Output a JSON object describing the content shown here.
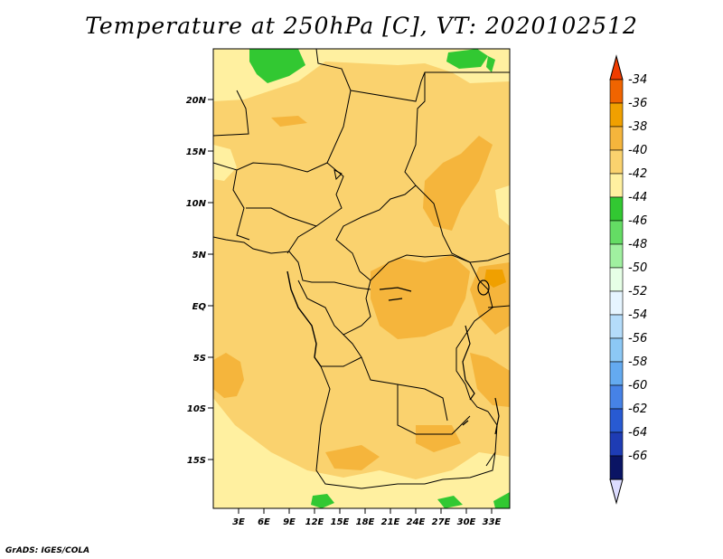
{
  "title": "Temperature at 250hPa [C], VT: 2020102512",
  "credit": "GrADS: IGES/COLA",
  "map": {
    "lon_labels": [
      "3E",
      "6E",
      "9E",
      "12E",
      "15E",
      "18E",
      "21E",
      "24E",
      "27E",
      "30E",
      "33E"
    ],
    "lat_labels": [
      "20N",
      "15N",
      "10N",
      "5N",
      "EQ",
      "5S",
      "10S",
      "15S"
    ]
  },
  "colorbar": {
    "labels": [
      "-34",
      "-36",
      "-38",
      "-40",
      "-42",
      "-44",
      "-46",
      "-48",
      "-50",
      "-52",
      "-54",
      "-56",
      "-58",
      "-60",
      "-62",
      "-64",
      "-66"
    ],
    "colors": [
      "#f03c00",
      "#f06400",
      "#f0a000",
      "#f5b53c",
      "#fad26e",
      "#fff0a0",
      "#32c832",
      "#64dc64",
      "#a0f0a0",
      "#e6ffe6",
      "#e6f5ff",
      "#b4dcfa",
      "#8cc8f5",
      "#64aaf0",
      "#4682e6",
      "#285ad2",
      "#1e3cb4",
      "#0a1464",
      "#dcdcff"
    ],
    "top_arrow_color": "#f03c00",
    "bottom_arrow_color": "#dcdcff"
  },
  "colors": {
    "fill_-40": "#fad26e",
    "fill_-38": "#f5b53c",
    "fill_-42": "#fff0a0",
    "fill_-44": "#32c832",
    "fill_-36": "#f0a000"
  }
}
